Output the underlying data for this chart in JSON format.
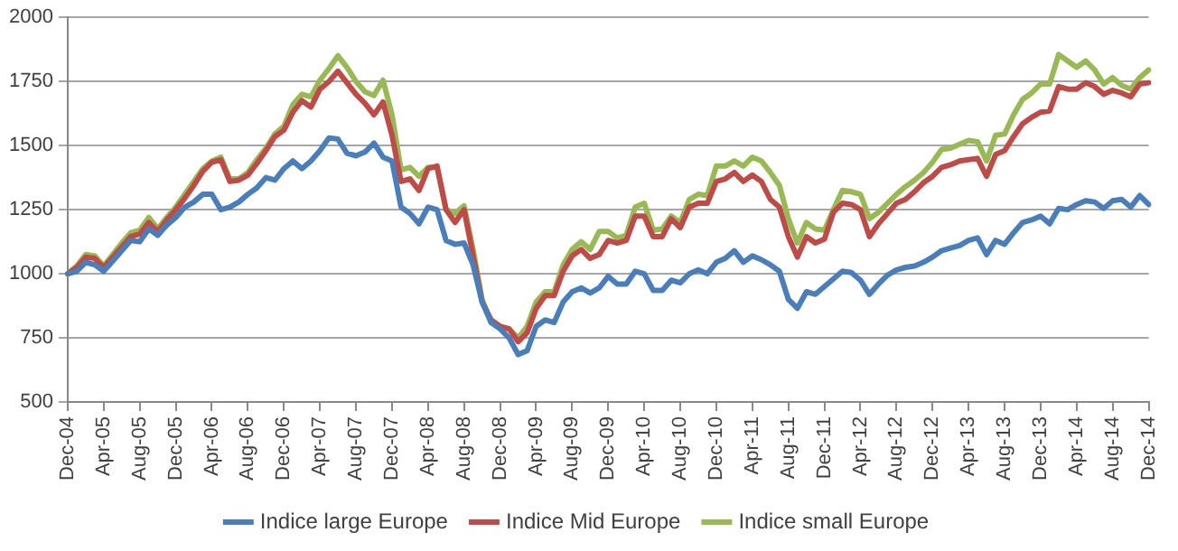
{
  "chart_data": {
    "type": "line",
    "categories": [
      "Dec-04",
      null,
      null,
      null,
      "Apr-05",
      null,
      null,
      null,
      "Aug-05",
      null,
      null,
      null,
      "Dec-05",
      null,
      null,
      null,
      "Apr-06",
      null,
      null,
      null,
      "Aug-06",
      null,
      null,
      null,
      "Dec-06",
      null,
      null,
      null,
      "Apr-07",
      null,
      null,
      null,
      "Aug-07",
      null,
      null,
      null,
      "Dec-07",
      null,
      null,
      null,
      "Apr-08",
      null,
      null,
      null,
      "Aug-08",
      null,
      null,
      null,
      "Dec-08",
      null,
      null,
      null,
      "Apr-09",
      null,
      null,
      null,
      "Aug-09",
      null,
      null,
      null,
      "Dec-09",
      null,
      null,
      null,
      "Apr-10",
      null,
      null,
      null,
      "Aug-10",
      null,
      null,
      null,
      "Dec-10",
      null,
      null,
      null,
      "Apr-11",
      null,
      null,
      null,
      "Aug-11",
      null,
      null,
      null,
      "Dec-11",
      null,
      null,
      null,
      "Apr-12",
      null,
      null,
      null,
      "Aug-12",
      null,
      null,
      null,
      "Dec-12",
      null,
      null,
      null,
      "Apr-13",
      null,
      null,
      null,
      "Aug-13",
      null,
      null,
      null,
      "Dec-13",
      null,
      null,
      null,
      "Apr-14",
      null,
      null,
      null,
      "Aug-14",
      null,
      null,
      null,
      "Dec-14"
    ],
    "series": [
      {
        "name": "Indice large Europe",
        "color": "#4a7ebb",
        "values": [
          1000,
          1010,
          1045,
          1035,
          1010,
          1050,
          1090,
          1130,
          1125,
          1175,
          1150,
          1190,
          1220,
          1260,
          1280,
          1310,
          1310,
          1250,
          1260,
          1280,
          1310,
          1335,
          1375,
          1365,
          1410,
          1440,
          1410,
          1440,
          1480,
          1530,
          1525,
          1470,
          1460,
          1475,
          1510,
          1455,
          1440,
          1260,
          1235,
          1195,
          1260,
          1250,
          1130,
          1115,
          1120,
          1035,
          890,
          810,
          785,
          750,
          685,
          700,
          795,
          820,
          810,
          890,
          930,
          945,
          925,
          945,
          990,
          960,
          960,
          1010,
          1000,
          935,
          935,
          975,
          965,
          1000,
          1015,
          1000,
          1045,
          1060,
          1090,
          1045,
          1070,
          1055,
          1035,
          1010,
          900,
          865,
          930,
          920,
          950,
          980,
          1010,
          1005,
          975,
          920,
          960,
          995,
          1015,
          1025,
          1030,
          1045,
          1065,
          1090,
          1100,
          1110,
          1130,
          1140,
          1075,
          1130,
          1115,
          1160,
          1200,
          1210,
          1225,
          1195,
          1255,
          1250,
          1270,
          1285,
          1280,
          1255,
          1285,
          1290,
          1260,
          1305,
          1270
        ]
      },
      {
        "name": "Indice Mid Europe",
        "color": "#be4b48",
        "values": [
          1000,
          1025,
          1065,
          1060,
          1025,
          1065,
          1105,
          1145,
          1155,
          1200,
          1165,
          1210,
          1250,
          1295,
          1345,
          1400,
          1435,
          1445,
          1360,
          1365,
          1385,
          1430,
          1480,
          1535,
          1560,
          1630,
          1675,
          1650,
          1720,
          1750,
          1790,
          1745,
          1700,
          1665,
          1620,
          1670,
          1540,
          1360,
          1370,
          1325,
          1410,
          1420,
          1250,
          1200,
          1250,
          1070,
          890,
          820,
          795,
          785,
          735,
          770,
          865,
          915,
          915,
          1010,
          1070,
          1095,
          1060,
          1075,
          1130,
          1120,
          1130,
          1225,
          1225,
          1145,
          1145,
          1215,
          1180,
          1260,
          1275,
          1275,
          1360,
          1370,
          1395,
          1360,
          1385,
          1360,
          1290,
          1260,
          1145,
          1065,
          1145,
          1120,
          1135,
          1240,
          1275,
          1270,
          1250,
          1145,
          1195,
          1235,
          1275,
          1290,
          1320,
          1355,
          1380,
          1415,
          1425,
          1440,
          1445,
          1450,
          1380,
          1465,
          1480,
          1535,
          1585,
          1610,
          1630,
          1635,
          1730,
          1720,
          1720,
          1745,
          1730,
          1700,
          1715,
          1705,
          1690,
          1740,
          1745
        ]
      },
      {
        "name": "Indice small Europe",
        "color": "#98b954",
        "values": [
          1000,
          1030,
          1075,
          1070,
          1030,
          1075,
          1120,
          1160,
          1170,
          1220,
          1175,
          1220,
          1260,
          1310,
          1360,
          1410,
          1440,
          1455,
          1370,
          1370,
          1395,
          1445,
          1490,
          1545,
          1575,
          1660,
          1700,
          1690,
          1755,
          1800,
          1850,
          1805,
          1750,
          1710,
          1695,
          1755,
          1620,
          1405,
          1415,
          1380,
          1415,
          1415,
          1250,
          1235,
          1265,
          1095,
          900,
          810,
          795,
          785,
          750,
          795,
          890,
          930,
          930,
          1035,
          1095,
          1125,
          1095,
          1165,
          1165,
          1140,
          1150,
          1260,
          1275,
          1170,
          1175,
          1225,
          1200,
          1290,
          1310,
          1305,
          1420,
          1420,
          1440,
          1420,
          1455,
          1440,
          1395,
          1345,
          1215,
          1120,
          1200,
          1175,
          1170,
          1250,
          1325,
          1320,
          1310,
          1215,
          1240,
          1275,
          1310,
          1340,
          1365,
          1395,
          1435,
          1485,
          1490,
          1505,
          1520,
          1515,
          1440,
          1540,
          1545,
          1620,
          1680,
          1705,
          1740,
          1740,
          1855,
          1830,
          1805,
          1830,
          1795,
          1740,
          1765,
          1735,
          1720,
          1765,
          1795
        ]
      }
    ],
    "ylim": [
      500,
      2000
    ],
    "yticks": [
      500,
      750,
      1000,
      1250,
      1500,
      1750,
      2000
    ],
    "grid": "y",
    "legend": "bottom",
    "marker": "none",
    "line_style": "solid"
  }
}
